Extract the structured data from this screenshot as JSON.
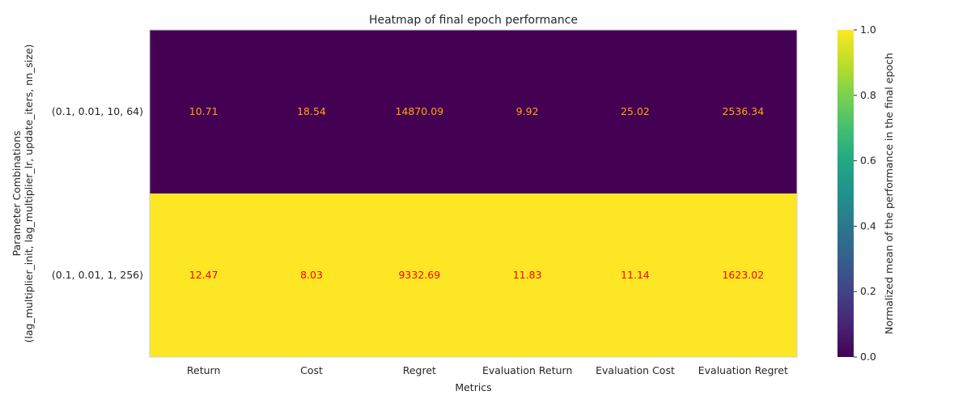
{
  "chart_data": {
    "type": "heatmap",
    "title": "Heatmap of final epoch performance",
    "xlabel": "Metrics",
    "ylabel_line1": "Parameter Combinations",
    "ylabel_line2": "(lag_multiplier_init, lag_multiplier_lr, update_iters, nn_size)",
    "columns": [
      "Return",
      "Cost",
      "Regret",
      "Evaluation Return",
      "Evaluation Cost",
      "Evaluation Regret"
    ],
    "rows": [
      {
        "label": "(0.1, 0.01, 10, 64)",
        "normalized": 0.0,
        "color": "#440154",
        "annotation_color": "#ffa500",
        "values": [
          "10.71",
          "18.54",
          "14870.09",
          "9.92",
          "25.02",
          "2536.34"
        ]
      },
      {
        "label": "(0.1, 0.01, 1, 256)",
        "normalized": 1.0,
        "color": "#fde725",
        "annotation_color": "#ff0000",
        "values": [
          "12.47",
          "8.03",
          "9332.69",
          "11.83",
          "11.14",
          "1623.02"
        ]
      }
    ],
    "colorbar": {
      "label": "Normalized mean of the performance in the final epoch",
      "range": [
        0,
        1
      ],
      "ticks": [
        "0.0",
        "0.2",
        "0.4",
        "0.6",
        "0.8",
        "1.0"
      ],
      "colormap": "viridis"
    },
    "grid": false
  }
}
